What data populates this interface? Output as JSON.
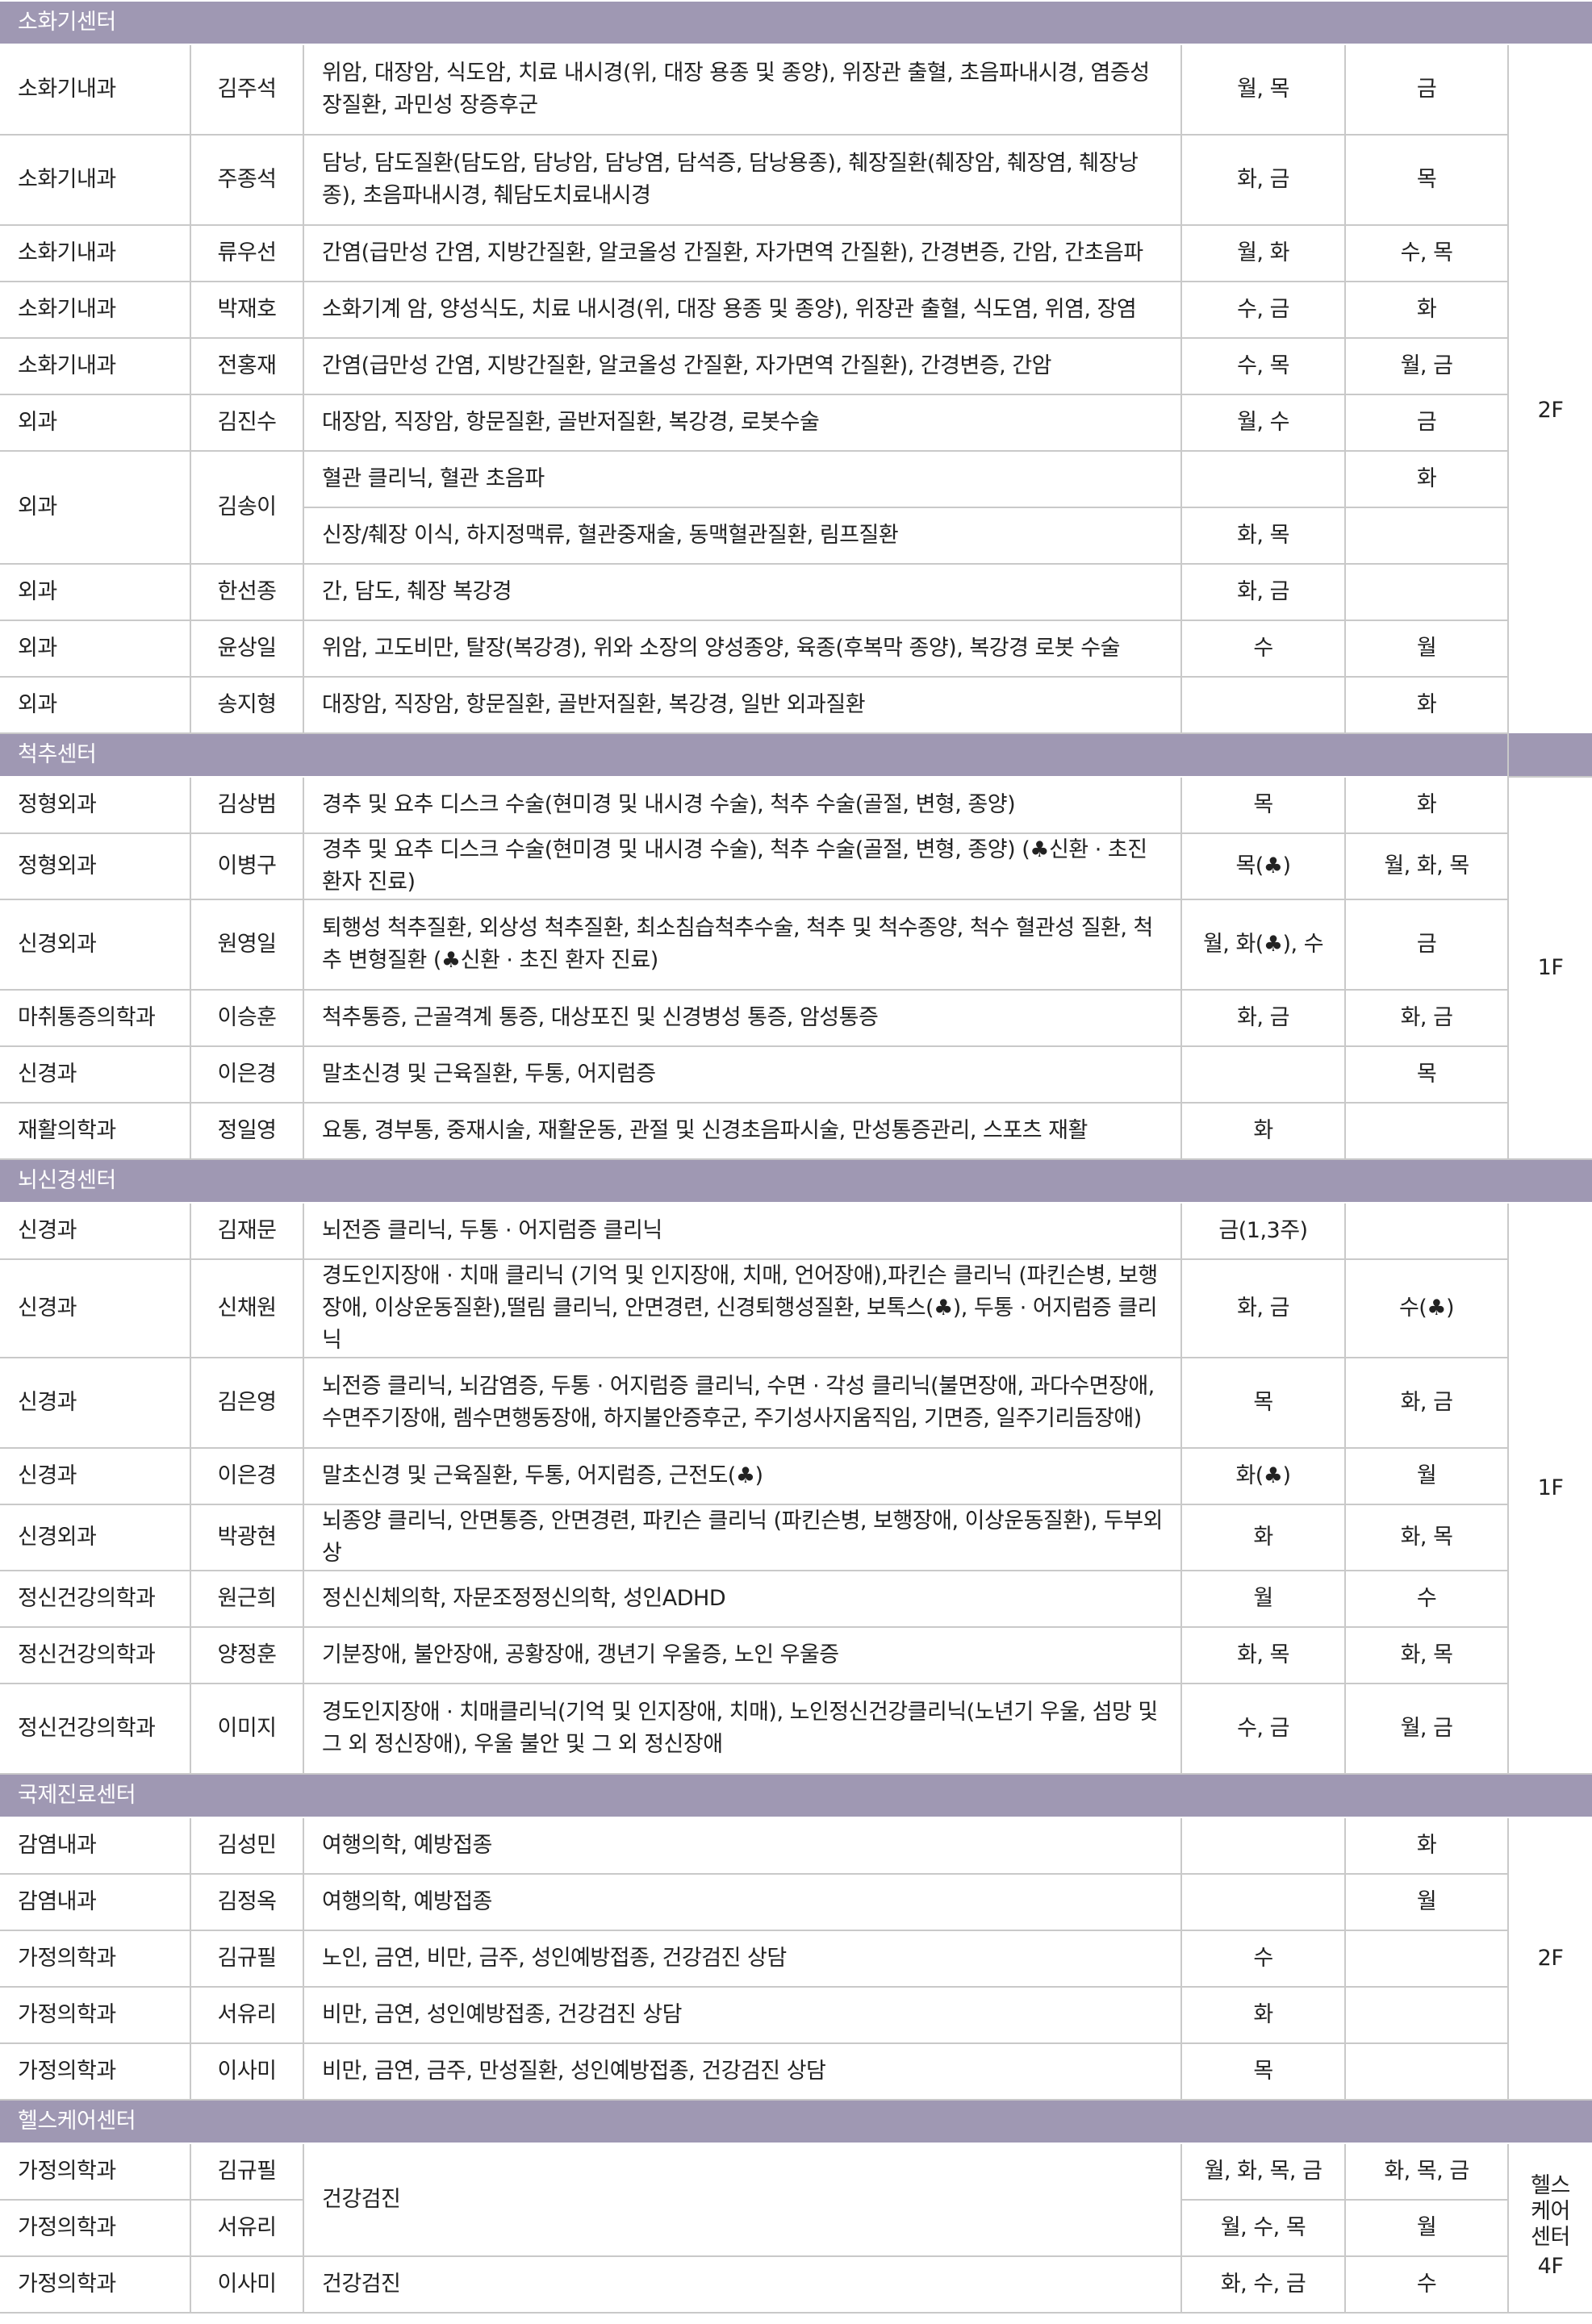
{
  "sections": [
    {
      "title": "소화기센터",
      "floor": "2F",
      "rows": [
        {
          "dept": "소화기내과",
          "doctor": "김주석",
          "spec": "위암, 대장암, 식도암, 치료 내시경(위, 대장 용종 및 종양), 위장관 출혈, 초음파내시경, 염증성 장질환, 과민성 장증후군",
          "am": "월, 목",
          "pm": "금"
        },
        {
          "dept": "소화기내과",
          "doctor": "주종석",
          "spec": "담낭, 담도질환(담도암, 담낭암, 담낭염, 담석증, 담낭용종), 췌장질환(췌장암, 췌장염, 췌장낭종), 초음파내시경, 췌담도치료내시경",
          "am": "화, 금",
          "pm": "목"
        },
        {
          "dept": "소화기내과",
          "doctor": "류우선",
          "spec": "간염(급만성 간염, 지방간질환, 알코올성 간질환, 자가면역 간질환), 간경변증, 간암, 간초음파",
          "am": "월, 화",
          "pm": "수, 목"
        },
        {
          "dept": "소화기내과",
          "doctor": "박재호",
          "spec": "소화기계 암, 양성식도, 치료 내시경(위, 대장 용종 및 종양), 위장관 출혈, 식도염, 위염, 장염",
          "am": "수, 금",
          "pm": "화"
        },
        {
          "dept": "소화기내과",
          "doctor": "전홍재",
          "spec": "간염(급만성 간염, 지방간질환, 알코올성 간질환, 자가면역 간질환), 간경변증, 간암",
          "am": "수, 목",
          "pm": "월, 금"
        },
        {
          "dept": "외과",
          "doctor": "김진수",
          "spec": "대장암, 직장암, 항문질환, 골반저질환, 복강경, 로봇수술",
          "am": "월, 수",
          "pm": "금"
        },
        {
          "dept": "외과",
          "doctor": "김송이",
          "spec": "혈관 클리닉, 혈관 초음파",
          "am": "",
          "pm": "화"
        },
        {
          "dept": "",
          "doctor": "",
          "spec": "신장/췌장 이식, 하지정맥류, 혈관중재술, 동맥혈관질환, 림프질환",
          "am": "화, 목",
          "pm": ""
        },
        {
          "dept": "외과",
          "doctor": "한선종",
          "spec": "간, 담도, 췌장 복강경",
          "am": "화, 금",
          "pm": ""
        },
        {
          "dept": "외과",
          "doctor": "윤상일",
          "spec": "위암, 고도비만, 탈장(복강경), 위와 소장의 양성종양, 육종(후복막 종양), 복강경 로봇 수술",
          "am": "수",
          "pm": "월"
        },
        {
          "dept": "외과",
          "doctor": "송지형",
          "spec": "대장암, 직장암, 항문질환, 골반저질환, 복강경, 일반 외과질환",
          "am": "",
          "pm": "화"
        }
      ]
    },
    {
      "title": "척추센터",
      "floor": "1F",
      "rows": [
        {
          "dept": "정형외과",
          "doctor": "김상범",
          "spec": "경추 및 요추 디스크 수술(현미경 및 내시경 수술), 척추 수술(골절, 변형, 종양)",
          "am": "목",
          "pm": "화"
        },
        {
          "dept": "정형외과",
          "doctor": "이병구",
          "spec": "경추 및 요추 디스크 수술(현미경 및 내시경 수술), 척추 수술(골절, 변형, 종양) (♣신환 · 초진 환자 진료)",
          "am": "목(♣)",
          "pm": "월, 화, 목"
        },
        {
          "dept": "신경외과",
          "doctor": "원영일",
          "spec": "퇴행성 척추질환, 외상성 척추질환, 최소침습척추수술, 척추 및 척수종양, 척수 혈관성 질환, 척추 변형질환 (♣신환 · 초진 환자 진료)",
          "am": "월, 화(♣), 수",
          "pm": "금"
        },
        {
          "dept": "마취통증의학과",
          "doctor": "이승훈",
          "spec": "척추통증, 근골격계 통증, 대상포진 및 신경병성 통증, 암성통증",
          "am": "화, 금",
          "pm": "화, 금"
        },
        {
          "dept": "신경과",
          "doctor": "이은경",
          "spec": "말초신경 및 근육질환, 두통, 어지럼증",
          "am": "",
          "pm": "목"
        },
        {
          "dept": "재활의학과",
          "doctor": "정일영",
          "spec": "요통, 경부통, 중재시술, 재활운동, 관절 및 신경초음파시술, 만성통증관리, 스포츠 재활",
          "am": "화",
          "pm": ""
        }
      ]
    },
    {
      "title": "뇌신경센터",
      "floor": "1F",
      "rows": [
        {
          "dept": "신경과",
          "doctor": "김재문",
          "spec": "뇌전증 클리닉, 두통 · 어지럼증 클리닉",
          "am": "금(1,3주)",
          "pm": ""
        },
        {
          "dept": "신경과",
          "doctor": "신채원",
          "spec": "경도인지장애 · 치매 클리닉 (기억 및 인지장애, 치매, 언어장애),파킨슨 클리닉 (파킨슨병, 보행장애, 이상운동질환),떨림 클리닉, 안면경련, 신경퇴행성질환, 보톡스(♣), 두통 · 어지럼증 클리닉",
          "am": "화, 금",
          "pm": "수(♣)"
        },
        {
          "dept": "신경과",
          "doctor": "김은영",
          "spec": "뇌전증 클리닉, 뇌감염증, 두통 · 어지럼증 클리닉, 수면 · 각성 클리닉(불면장애, 과다수면장애, 수면주기장애, 렘수면행동장애, 하지불안증후군, 주기성사지움직임, 기면증, 일주기리듬장애)",
          "am": "목",
          "pm": "화, 금"
        },
        {
          "dept": "신경과",
          "doctor": "이은경",
          "spec": "말초신경 및 근육질환, 두통, 어지럼증, 근전도(♣)",
          "am": "화(♣)",
          "pm": "월"
        },
        {
          "dept": "신경외과",
          "doctor": "박광현",
          "spec": "뇌종양 클리닉, 안면통증, 안면경련, 파킨슨 클리닉 (파킨슨병, 보행장애, 이상운동질환), 두부외상",
          "am": "화",
          "pm": "화, 목"
        },
        {
          "dept": "정신건강의학과",
          "doctor": "원근희",
          "spec": "정신신체의학, 자문조정정신의학, 성인ADHD",
          "am": "월",
          "pm": "수"
        },
        {
          "dept": "정신건강의학과",
          "doctor": "양정훈",
          "spec": "기분장애, 불안장애, 공황장애, 갱년기 우울증, 노인 우울증",
          "am": "화, 목",
          "pm": "화, 목"
        },
        {
          "dept": "정신건강의학과",
          "doctor": "이미지",
          "spec": "경도인지장애 · 치매클리닉(기억 및 인지장애, 치매), 노인정신건강클리닉(노년기 우울, 섬망 및 그 외 정신장애), 우울 불안 및 그 외 정신장애",
          "am": "수, 금",
          "pm": "월, 금"
        }
      ]
    },
    {
      "title": "국제진료센터",
      "floor": "2F",
      "rows": [
        {
          "dept": "감염내과",
          "doctor": "김성민",
          "spec": "여행의학, 예방접종",
          "am": "",
          "pm": "화"
        },
        {
          "dept": "감염내과",
          "doctor": "김정옥",
          "spec": "여행의학, 예방접종",
          "am": "",
          "pm": "월"
        },
        {
          "dept": "가정의학과",
          "doctor": "김규필",
          "spec": "노인, 금연, 비만, 금주, 성인예방접종, 건강검진 상담",
          "am": "수",
          "pm": ""
        },
        {
          "dept": "가정의학과",
          "doctor": "서유리",
          "spec": "비만, 금연, 성인예방접종, 건강검진 상담",
          "am": "화",
          "pm": ""
        },
        {
          "dept": "가정의학과",
          "doctor": "이사미",
          "spec": "비만, 금연, 금주, 만성질환, 성인예방접종, 건강검진 상담",
          "am": "목",
          "pm": ""
        }
      ]
    },
    {
      "title": "헬스케어센터",
      "floor_name": "헬스케어센터",
      "floor": "4F",
      "rows": [
        {
          "dept": "가정의학과",
          "doctor": "김규필",
          "spec": "건강검진",
          "am": "월, 화, 목, 금",
          "pm": "화, 목, 금"
        },
        {
          "dept": "가정의학과",
          "doctor": "서유리",
          "spec": "",
          "am": "월, 수, 목",
          "pm": "월"
        },
        {
          "dept": "가정의학과",
          "doctor": "이사미",
          "spec": "건강검진",
          "am": "화, 수, 금",
          "pm": "수"
        }
      ]
    }
  ]
}
